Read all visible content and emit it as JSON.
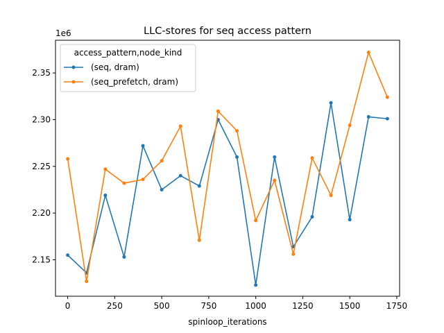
{
  "chart_data": {
    "type": "line",
    "title": "LLC-stores for seq access pattern",
    "xlabel": "spinloop_iterations",
    "ylabel": "",
    "y_multiplier_label": "1e6",
    "xlim": [
      -65,
      1765
    ],
    "ylim": [
      2.111,
      2.385
    ],
    "xticks": [
      0,
      250,
      500,
      750,
      1000,
      1250,
      1500,
      1750
    ],
    "yticks": [
      2.15,
      2.2,
      2.25,
      2.3,
      2.35
    ],
    "ytick_labels": [
      "2.15",
      "2.20",
      "2.25",
      "2.30",
      "2.35"
    ],
    "grid": false,
    "legend": {
      "title": "access_pattern,node_kind",
      "placement": "top-left"
    },
    "x": [
      0,
      100,
      200,
      300,
      400,
      500,
      600,
      700,
      800,
      900,
      1000,
      1100,
      1200,
      1300,
      1400,
      1500,
      1600,
      1700
    ],
    "series": [
      {
        "name": "(seq, dram)",
        "color": "#1f77b4",
        "values": [
          2.155,
          2.136,
          2.219,
          2.153,
          2.272,
          2.225,
          2.24,
          2.229,
          2.3,
          2.26,
          2.123,
          2.26,
          2.164,
          2.196,
          2.318,
          2.193,
          2.303,
          2.301
        ]
      },
      {
        "name": "(seq_prefetch, dram)",
        "color": "#ff7f0e",
        "values": [
          2.258,
          2.127,
          2.247,
          2.232,
          2.236,
          2.256,
          2.293,
          2.171,
          2.309,
          2.288,
          2.192,
          2.235,
          2.156,
          2.259,
          2.219,
          2.294,
          2.372,
          2.324
        ]
      }
    ]
  }
}
